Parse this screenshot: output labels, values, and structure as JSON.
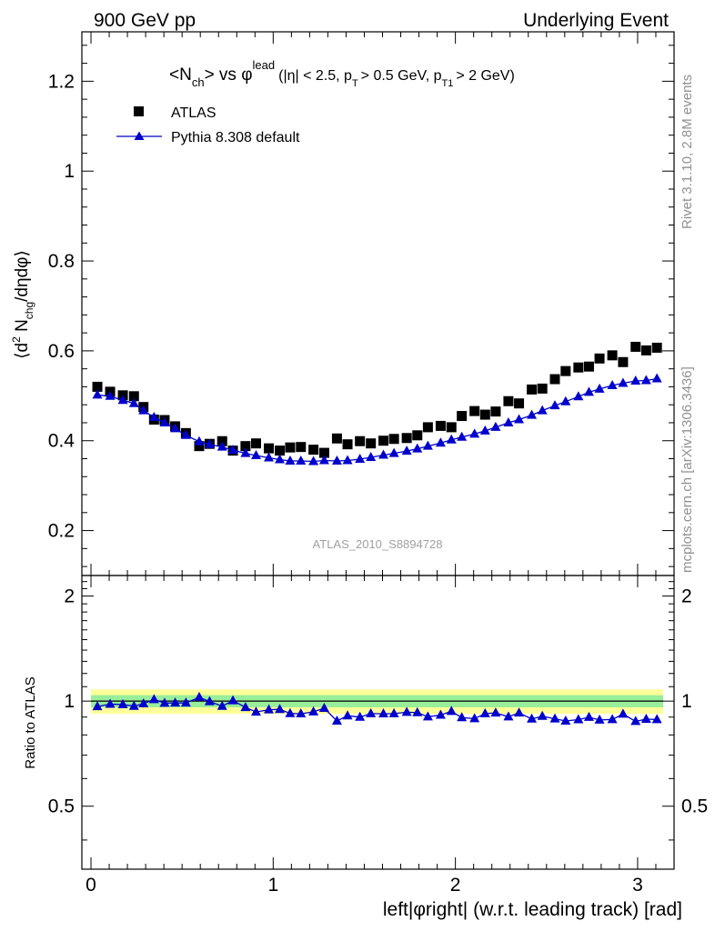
{
  "header": {
    "left": "900 GeV pp",
    "right": "Underlying Event"
  },
  "side_labels": {
    "rivet": "Rivet 3.1.10,  2.8M events",
    "mcplots": "mcplots.cern.ch [arXiv:1306.3436]"
  },
  "analysis_label": "ATLAS_2010_S8894728",
  "colors": {
    "mc": "#0000cc",
    "data": "#000000",
    "band_inner": "#99ee99",
    "band_outer": "#ffff99"
  },
  "chart_data": [
    {
      "type": "scatter",
      "title": "<N_ch> vs φ^lead (|η| < 2.5, p_T > 0.5 GeV, p_T1 > 2 GeV)",
      "title_parts": {
        "main": "<N",
        "main_sub": "ch",
        "vs": "> vs φ",
        "vs_sup": "lead",
        "cut1": "(|η| < 2.5, p",
        "cut1_sub": "T",
        "cut2": "> 0.5 GeV, p",
        "cut2_sub": "T1",
        "cut3": "> 2 GeV)"
      },
      "ylabel": "⟨d² N_chg/dηdφ⟩",
      "ylabel_parts": {
        "a": "⟨d",
        "sup": "2",
        "b": " N",
        "sub": "chg",
        "c": "/dηdφ⟩"
      },
      "xlim": [
        -0.05,
        3.2
      ],
      "ylim": [
        0.1,
        1.31
      ],
      "yticks": [
        "0.2",
        "0.4",
        "0.6",
        "0.8",
        "1",
        "1.2"
      ],
      "ytick_values": [
        0.2,
        0.4,
        0.6,
        0.8,
        1.0,
        1.2
      ],
      "legend_position": "top-left",
      "series": [
        {
          "name": "ATLAS",
          "marker": "square",
          "x": [
            0.035,
            0.105,
            0.175,
            0.236,
            0.288,
            0.346,
            0.404,
            0.462,
            0.521,
            0.594,
            0.651,
            0.72,
            0.779,
            0.848,
            0.906,
            0.976,
            1.036,
            1.093,
            1.152,
            1.221,
            1.28,
            1.35,
            1.408,
            1.476,
            1.536,
            1.605,
            1.663,
            1.733,
            1.791,
            1.849,
            1.919,
            1.978,
            2.035,
            2.105,
            2.163,
            2.221,
            2.291,
            2.349,
            2.419,
            2.477,
            2.546,
            2.605,
            2.675,
            2.733,
            2.791,
            2.861,
            2.92,
            2.989,
            3.047,
            3.106
          ],
          "y": [
            0.52,
            0.509,
            0.501,
            0.499,
            0.475,
            0.447,
            0.446,
            0.432,
            0.417,
            0.388,
            0.393,
            0.399,
            0.378,
            0.388,
            0.394,
            0.383,
            0.378,
            0.385,
            0.386,
            0.38,
            0.373,
            0.405,
            0.392,
            0.399,
            0.394,
            0.4,
            0.404,
            0.406,
            0.412,
            0.43,
            0.433,
            0.43,
            0.455,
            0.466,
            0.458,
            0.465,
            0.488,
            0.483,
            0.514,
            0.516,
            0.537,
            0.555,
            0.563,
            0.565,
            0.583,
            0.59,
            0.575,
            0.609,
            0.601,
            0.607
          ]
        },
        {
          "name": "Pythia 8.308 default",
          "marker": "triangle",
          "x": [
            0.035,
            0.105,
            0.175,
            0.236,
            0.288,
            0.346,
            0.404,
            0.462,
            0.521,
            0.594,
            0.651,
            0.72,
            0.779,
            0.848,
            0.906,
            0.976,
            1.036,
            1.093,
            1.152,
            1.221,
            1.28,
            1.35,
            1.408,
            1.476,
            1.536,
            1.605,
            1.663,
            1.733,
            1.791,
            1.849,
            1.919,
            1.978,
            2.035,
            2.105,
            2.163,
            2.221,
            2.291,
            2.349,
            2.419,
            2.477,
            2.546,
            2.605,
            2.675,
            2.733,
            2.791,
            2.861,
            2.92,
            2.989,
            3.047,
            3.106
          ],
          "y": [
            0.502,
            0.499,
            0.49,
            0.483,
            0.467,
            0.452,
            0.44,
            0.427,
            0.412,
            0.398,
            0.392,
            0.386,
            0.379,
            0.372,
            0.367,
            0.362,
            0.358,
            0.355,
            0.355,
            0.354,
            0.356,
            0.355,
            0.356,
            0.359,
            0.363,
            0.368,
            0.372,
            0.377,
            0.382,
            0.388,
            0.395,
            0.402,
            0.408,
            0.415,
            0.422,
            0.43,
            0.44,
            0.447,
            0.457,
            0.467,
            0.478,
            0.487,
            0.498,
            0.508,
            0.515,
            0.523,
            0.528,
            0.533,
            0.534,
            0.538
          ]
        }
      ]
    },
    {
      "type": "scatter",
      "ylabel": "Ratio to ATLAS",
      "xlabel": "left|φright| (w.r.t. leading track) [rad]",
      "xlim": [
        -0.05,
        3.2
      ],
      "xticks": [
        "0",
        "1",
        "2",
        "3"
      ],
      "xtick_values": [
        0,
        1,
        2,
        3
      ],
      "ylim": [
        0.33,
        2.29
      ],
      "yticks": [
        "0.5",
        "1",
        "2"
      ],
      "ytick_values": [
        0.5,
        1,
        2
      ],
      "reference_line": 1.0,
      "uncertainty_band": {
        "inner_halfwidth": 0.04,
        "outer_halfwidth": 0.08
      },
      "series": [
        {
          "name": "Pythia 8.308 default",
          "marker": "triangle",
          "x": [
            0.035,
            0.105,
            0.175,
            0.236,
            0.288,
            0.346,
            0.404,
            0.462,
            0.521,
            0.594,
            0.651,
            0.72,
            0.779,
            0.848,
            0.906,
            0.976,
            1.036,
            1.093,
            1.152,
            1.221,
            1.28,
            1.35,
            1.408,
            1.476,
            1.536,
            1.605,
            1.663,
            1.733,
            1.791,
            1.849,
            1.919,
            1.978,
            2.035,
            2.105,
            2.163,
            2.221,
            2.291,
            2.349,
            2.419,
            2.477,
            2.546,
            2.605,
            2.675,
            2.733,
            2.791,
            2.861,
            2.92,
            2.989,
            3.047,
            3.106
          ],
          "y": [
            0.965,
            0.98,
            0.978,
            0.967,
            0.983,
            1.011,
            0.987,
            0.988,
            0.988,
            1.026,
            0.997,
            0.967,
            1.003,
            0.959,
            0.931,
            0.945,
            0.947,
            0.922,
            0.92,
            0.932,
            0.954,
            0.877,
            0.908,
            0.9,
            0.921,
            0.92,
            0.921,
            0.929,
            0.927,
            0.902,
            0.912,
            0.935,
            0.897,
            0.891,
            0.921,
            0.925,
            0.902,
            0.925,
            0.889,
            0.905,
            0.89,
            0.877,
            0.885,
            0.899,
            0.883,
            0.886,
            0.918,
            0.875,
            0.888,
            0.886
          ]
        }
      ]
    }
  ]
}
